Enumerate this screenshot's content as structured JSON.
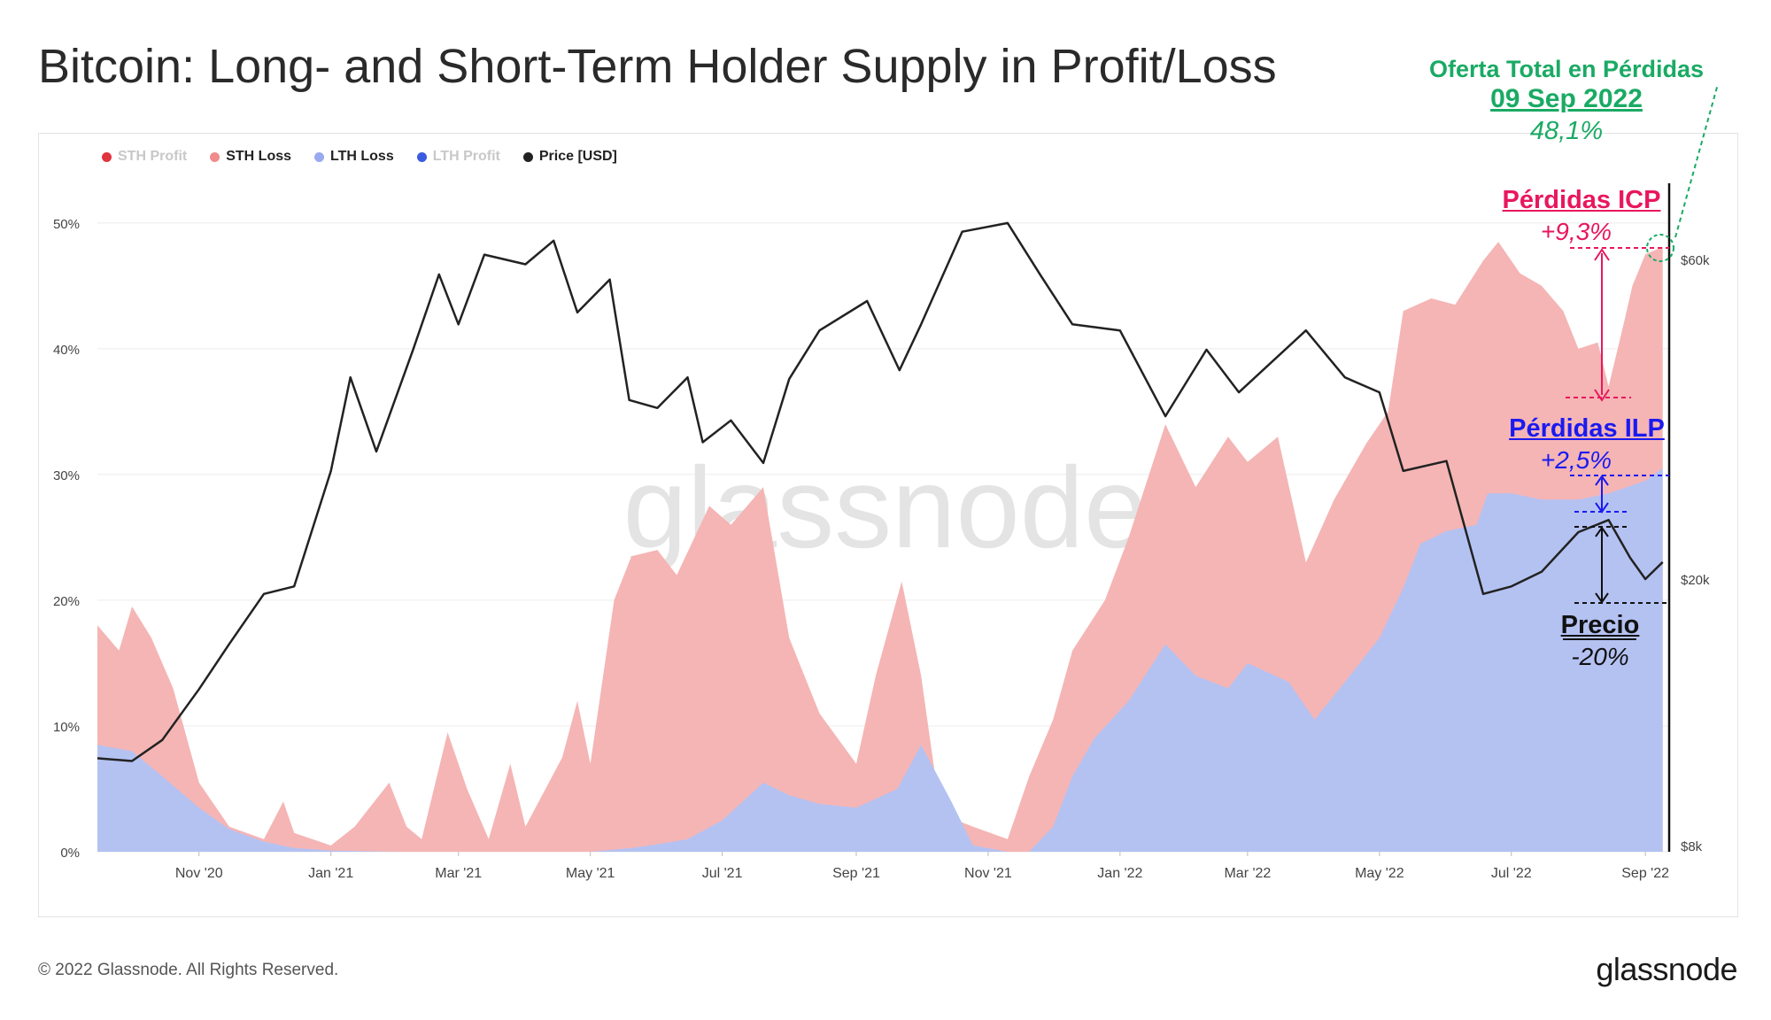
{
  "title": "Bitcoin: Long- and Short-Term Holder Supply in Profit/Loss",
  "legend": [
    {
      "label": "STH Profit",
      "color": "#e0343f",
      "active": false
    },
    {
      "label": "STH Loss",
      "color": "#f08c8c",
      "active": true
    },
    {
      "label": "LTH Loss",
      "color": "#9aaaf0",
      "active": true
    },
    {
      "label": "LTH Profit",
      "color": "#3a5ae0",
      "active": false
    },
    {
      "label": "Price [USD]",
      "color": "#222222",
      "active": true
    }
  ],
  "watermark": "glassnode",
  "footer": {
    "copyright": "© 2022 Glassnode. All Rights Reserved.",
    "logo": "glassnode"
  },
  "annotations": {
    "total_loss_title": "Oferta Total en Pérdidas",
    "total_loss_date": "09 Sep 2022",
    "total_loss_value": "48,1%",
    "icp_title": "Pérdidas ICP",
    "icp_value": "+9,3%",
    "ilp_title": "Pérdidas ILP",
    "ilp_value": "+2,5%",
    "price_title": "Precio",
    "price_value": "-20%"
  },
  "colors": {
    "sth_loss_fill": "#f5b5b5",
    "lth_loss_fill": "#b4c2f2",
    "price_line": "#222222",
    "icp": "#e8175d",
    "ilp": "#1a1af0",
    "total": "#1aaa64"
  },
  "chart_data": {
    "type": "area",
    "x_tick_labels": [
      "Nov '20",
      "Jan '21",
      "Mar '21",
      "May '21",
      "Jul '21",
      "Sep '21",
      "Nov '21",
      "Jan '22",
      "Mar '22",
      "May '22",
      "Jul '22",
      "Sep '22"
    ],
    "y_left_ticks": [
      "0%",
      "10%",
      "20%",
      "30%",
      "40%",
      "50%"
    ],
    "y_left_lim": [
      0,
      54
    ],
    "y_right_ticks": [
      "$8k",
      "$20k",
      "$60k"
    ],
    "y_right_scale": "log",
    "x_range": [
      "2020-09-15",
      "2022-09-12"
    ],
    "series": [
      {
        "name": "LTH Loss",
        "unit": "% of supply",
        "points": [
          [
            "2020-09-15",
            8.5
          ],
          [
            "2020-10-01",
            8.0
          ],
          [
            "2020-10-15",
            6.0
          ],
          [
            "2020-11-01",
            3.5
          ],
          [
            "2020-11-15",
            1.8
          ],
          [
            "2020-12-01",
            0.8
          ],
          [
            "2020-12-15",
            0.3
          ],
          [
            "2021-01-01",
            0.1
          ],
          [
            "2021-02-01",
            0.0
          ],
          [
            "2021-03-01",
            0.0
          ],
          [
            "2021-04-01",
            0.0
          ],
          [
            "2021-05-01",
            0.0
          ],
          [
            "2021-05-20",
            0.3
          ],
          [
            "2021-06-01",
            0.6
          ],
          [
            "2021-06-15",
            1.0
          ],
          [
            "2021-07-01",
            2.5
          ],
          [
            "2021-07-20",
            5.5
          ],
          [
            "2021-08-01",
            4.5
          ],
          [
            "2021-08-15",
            3.8
          ],
          [
            "2021-09-01",
            3.5
          ],
          [
            "2021-09-20",
            5.0
          ],
          [
            "2021-10-01",
            8.5
          ],
          [
            "2021-10-15",
            4.0
          ],
          [
            "2021-10-25",
            0.5
          ],
          [
            "2021-11-10",
            0.0
          ],
          [
            "2021-11-20",
            0.0
          ],
          [
            "2021-12-01",
            2.0
          ],
          [
            "2021-12-10",
            6.0
          ],
          [
            "2021-12-20",
            9.0
          ],
          [
            "2022-01-05",
            12.0
          ],
          [
            "2022-01-22",
            16.5
          ],
          [
            "2022-02-05",
            14.0
          ],
          [
            "2022-02-20",
            13.0
          ],
          [
            "2022-03-01",
            15.0
          ],
          [
            "2022-03-20",
            13.5
          ],
          [
            "2022-04-01",
            10.5
          ],
          [
            "2022-04-15",
            13.5
          ],
          [
            "2022-05-01",
            17.0
          ],
          [
            "2022-05-12",
            21.0
          ],
          [
            "2022-05-20",
            24.5
          ],
          [
            "2022-06-01",
            25.5
          ],
          [
            "2022-06-15",
            26.0
          ],
          [
            "2022-06-20",
            28.5
          ],
          [
            "2022-07-01",
            28.5
          ],
          [
            "2022-07-15",
            28.0
          ],
          [
            "2022-08-01",
            28.0
          ],
          [
            "2022-08-15",
            28.5
          ],
          [
            "2022-09-01",
            29.5
          ],
          [
            "2022-09-09",
            30.5
          ]
        ]
      },
      {
        "name": "STH Loss",
        "unit": "% of supply (stacked total)",
        "points": [
          [
            "2020-09-15",
            18.0
          ],
          [
            "2020-09-25",
            16.0
          ],
          [
            "2020-10-01",
            19.5
          ],
          [
            "2020-10-10",
            17.0
          ],
          [
            "2020-10-20",
            13.0
          ],
          [
            "2020-11-01",
            5.5
          ],
          [
            "2020-11-15",
            2.0
          ],
          [
            "2020-12-01",
            1.0
          ],
          [
            "2020-12-10",
            4.0
          ],
          [
            "2020-12-15",
            1.5
          ],
          [
            "2021-01-01",
            0.5
          ],
          [
            "2021-01-12",
            2.0
          ],
          [
            "2021-01-28",
            5.5
          ],
          [
            "2021-02-05",
            2.0
          ],
          [
            "2021-02-12",
            1.0
          ],
          [
            "2021-02-24",
            9.5
          ],
          [
            "2021-03-05",
            5.0
          ],
          [
            "2021-03-15",
            1.0
          ],
          [
            "2021-03-25",
            7.0
          ],
          [
            "2021-04-01",
            2.0
          ],
          [
            "2021-04-18",
            7.5
          ],
          [
            "2021-04-25",
            12.0
          ],
          [
            "2021-05-01",
            7.0
          ],
          [
            "2021-05-12",
            20.0
          ],
          [
            "2021-05-20",
            23.5
          ],
          [
            "2021-06-01",
            24.0
          ],
          [
            "2021-06-10",
            22.0
          ],
          [
            "2021-06-25",
            27.5
          ],
          [
            "2021-07-05",
            26.0
          ],
          [
            "2021-07-20",
            29.0
          ],
          [
            "2021-08-01",
            17.0
          ],
          [
            "2021-08-15",
            11.0
          ],
          [
            "2021-09-01",
            7.0
          ],
          [
            "2021-09-10",
            14.0
          ],
          [
            "2021-09-22",
            21.5
          ],
          [
            "2021-10-01",
            14.0
          ],
          [
            "2021-10-10",
            3.0
          ],
          [
            "2021-10-25",
            2.0
          ],
          [
            "2021-11-10",
            1.0
          ],
          [
            "2021-11-20",
            6.0
          ],
          [
            "2021-12-01",
            10.5
          ],
          [
            "2021-12-10",
            16.0
          ],
          [
            "2021-12-25",
            20.0
          ],
          [
            "2022-01-05",
            25.0
          ],
          [
            "2022-01-22",
            34.0
          ],
          [
            "2022-02-05",
            29.0
          ],
          [
            "2022-02-20",
            33.0
          ],
          [
            "2022-03-01",
            31.0
          ],
          [
            "2022-03-15",
            33.0
          ],
          [
            "2022-03-28",
            23.0
          ],
          [
            "2022-04-10",
            28.0
          ],
          [
            "2022-04-25",
            32.5
          ],
          [
            "2022-05-05",
            35.0
          ],
          [
            "2022-05-12",
            43.0
          ],
          [
            "2022-05-25",
            44.0
          ],
          [
            "2022-06-05",
            43.5
          ],
          [
            "2022-06-18",
            47.0
          ],
          [
            "2022-06-25",
            48.5
          ],
          [
            "2022-07-05",
            46.0
          ],
          [
            "2022-07-15",
            45.0
          ],
          [
            "2022-07-25",
            43.0
          ],
          [
            "2022-08-01",
            40.0
          ],
          [
            "2022-08-10",
            40.5
          ],
          [
            "2022-08-15",
            37.0
          ],
          [
            "2022-08-22",
            42.0
          ],
          [
            "2022-08-26",
            45.0
          ],
          [
            "2022-09-01",
            47.5
          ],
          [
            "2022-09-09",
            48.1
          ]
        ]
      },
      {
        "name": "Price [USD]",
        "unit": "USD",
        "points": [
          [
            "2020-09-15",
            10800
          ],
          [
            "2020-10-01",
            10700
          ],
          [
            "2020-10-15",
            11500
          ],
          [
            "2020-11-01",
            13700
          ],
          [
            "2020-11-15",
            16000
          ],
          [
            "2020-12-01",
            19000
          ],
          [
            "2020-12-15",
            19500
          ],
          [
            "2021-01-01",
            29000
          ],
          [
            "2021-01-10",
            40000
          ],
          [
            "2021-01-22",
            31000
          ],
          [
            "2021-02-08",
            44000
          ],
          [
            "2021-02-20",
            57000
          ],
          [
            "2021-03-01",
            48000
          ],
          [
            "2021-03-13",
            61000
          ],
          [
            "2021-04-01",
            59000
          ],
          [
            "2021-04-14",
            64000
          ],
          [
            "2021-04-25",
            50000
          ],
          [
            "2021-05-10",
            56000
          ],
          [
            "2021-05-19",
            37000
          ],
          [
            "2021-06-01",
            36000
          ],
          [
            "2021-06-15",
            40000
          ],
          [
            "2021-06-22",
            32000
          ],
          [
            "2021-07-05",
            34500
          ],
          [
            "2021-07-20",
            29800
          ],
          [
            "2021-08-01",
            39800
          ],
          [
            "2021-08-15",
            47000
          ],
          [
            "2021-09-06",
            52000
          ],
          [
            "2021-09-21",
            41000
          ],
          [
            "2021-10-01",
            48000
          ],
          [
            "2021-10-20",
            66000
          ],
          [
            "2021-11-10",
            68000
          ],
          [
            "2021-11-25",
            57000
          ],
          [
            "2021-12-10",
            48000
          ],
          [
            "2022-01-01",
            47000
          ],
          [
            "2022-01-22",
            35000
          ],
          [
            "2022-02-10",
            44000
          ],
          [
            "2022-02-25",
            38000
          ],
          [
            "2022-03-28",
            47000
          ],
          [
            "2022-04-15",
            40000
          ],
          [
            "2022-05-01",
            38000
          ],
          [
            "2022-05-12",
            29000
          ],
          [
            "2022-06-01",
            30000
          ],
          [
            "2022-06-18",
            19000
          ],
          [
            "2022-07-01",
            19500
          ],
          [
            "2022-07-15",
            20500
          ],
          [
            "2022-08-01",
            23500
          ],
          [
            "2022-08-15",
            24500
          ],
          [
            "2022-08-25",
            21500
          ],
          [
            "2022-09-01",
            20000
          ],
          [
            "2022-09-09",
            21200
          ]
        ]
      }
    ]
  }
}
